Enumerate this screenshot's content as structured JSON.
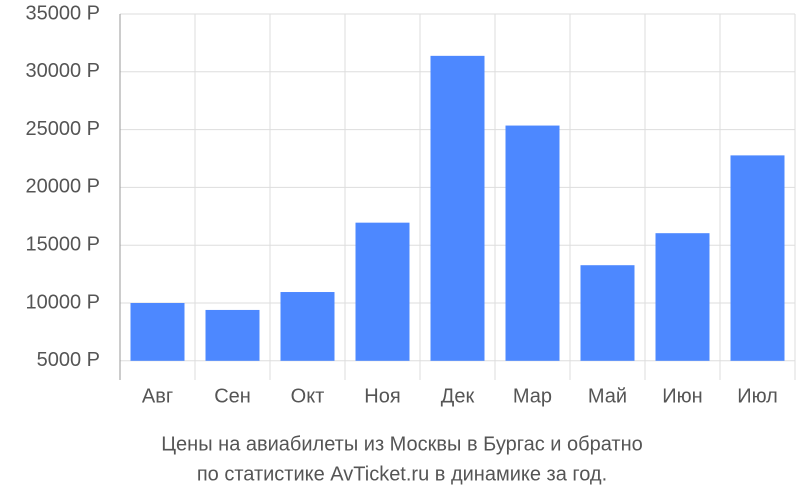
{
  "chart_data": {
    "type": "bar",
    "title": [
      "Цены на авиабилеты из Москвы в Бургас и обратно",
      "по статистике AvTicket.ru в динамике за год."
    ],
    "categories": [
      "Авг",
      "Сен",
      "Окт",
      "Ноя",
      "Дек",
      "Мар",
      "Май",
      "Июн",
      "Июл"
    ],
    "values": [
      10000,
      9400,
      10950,
      16950,
      31380,
      25350,
      13270,
      16040,
      22770
    ],
    "color": "#4d88ff",
    "ylim": [
      3340,
      35000
    ],
    "yticks": [
      {
        "value": 5000,
        "label": "5000 Р"
      },
      {
        "value": 10000,
        "label": "10000 Р"
      },
      {
        "value": 15000,
        "label": "15000 Р"
      },
      {
        "value": 20000,
        "label": "20000 Р"
      },
      {
        "value": 25000,
        "label": "25000 Р"
      },
      {
        "value": 30000,
        "label": "30000 Р"
      },
      {
        "value": 35000,
        "label": "35000 Р"
      }
    ],
    "grid": true
  }
}
